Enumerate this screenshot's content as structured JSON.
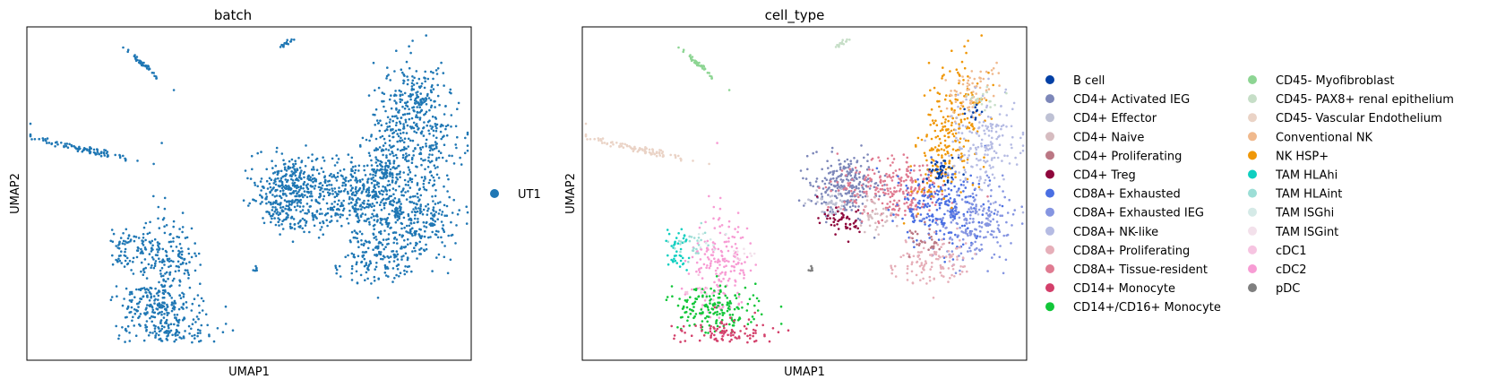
{
  "chart_data": [
    {
      "type": "scatter",
      "title": "batch",
      "xlabel": "UMAP1",
      "ylabel": "UMAP2",
      "xticks": false,
      "yticks": false,
      "grid": false,
      "legend_position": "right",
      "legend": [
        {
          "name": "UT1",
          "color": "#1f77b4"
        }
      ],
      "point_color": "#1f77b4"
    },
    {
      "type": "scatter",
      "title": "cell_type",
      "xlabel": "UMAP1",
      "ylabel": "UMAP2",
      "xticks": false,
      "yticks": false,
      "grid": false,
      "legend_position": "right",
      "legend": [
        {
          "name": "B cell",
          "color": "#023fa5"
        },
        {
          "name": "CD4+ Activated IEG",
          "color": "#7d87b9"
        },
        {
          "name": "CD4+ Effector",
          "color": "#bec1d4"
        },
        {
          "name": "CD4+ Naive",
          "color": "#d6bcc0"
        },
        {
          "name": "CD4+ Proliferating",
          "color": "#bb7784"
        },
        {
          "name": "CD4+ Treg",
          "color": "#8e063b"
        },
        {
          "name": "CD8A+ Exhausted",
          "color": "#4a6fe3"
        },
        {
          "name": "CD8A+ Exhausted IEG",
          "color": "#8595e1"
        },
        {
          "name": "CD8A+ NK-like",
          "color": "#b5bbe3"
        },
        {
          "name": "CD8A+ Proliferating",
          "color": "#e6afb9"
        },
        {
          "name": "CD8A+ Tissue-resident",
          "color": "#e07b91"
        },
        {
          "name": "CD14+ Monocyte",
          "color": "#d33f6a"
        },
        {
          "name": "CD14+/CD16+ Monocyte",
          "color": "#11c638"
        },
        {
          "name": "CD45- Myofibroblast",
          "color": "#8dd593"
        },
        {
          "name": "CD45- PAX8+ renal epithelium",
          "color": "#c6dec7"
        },
        {
          "name": "CD45- Vascular Endothelium",
          "color": "#ead3c6"
        },
        {
          "name": "Conventional NK",
          "color": "#f0b98d"
        },
        {
          "name": "NK HSP+",
          "color": "#ef9708"
        },
        {
          "name": "TAM HLAhi",
          "color": "#0fcfc0"
        },
        {
          "name": "TAM HLAint",
          "color": "#9cded6"
        },
        {
          "name": "TAM ISGhi",
          "color": "#d5eae7"
        },
        {
          "name": "TAM ISGint",
          "color": "#f3e1eb"
        },
        {
          "name": "cDC1",
          "color": "#f6c4e1"
        },
        {
          "name": "cDC2",
          "color": "#f79cd4"
        },
        {
          "name": "pDC",
          "color": "#7f7f7f"
        }
      ]
    }
  ]
}
